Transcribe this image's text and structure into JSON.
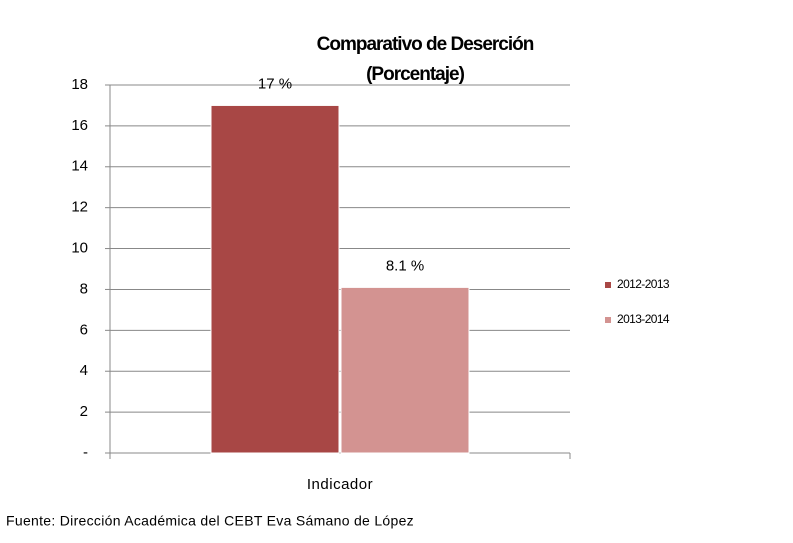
{
  "chart_data": {
    "type": "bar",
    "title": "Comparativo de Deserción",
    "subtitle": "(Porcentaje)",
    "categories": [
      "Indicador"
    ],
    "series": [
      {
        "name": "2012-2013",
        "color": "#a84745",
        "values": [
          17
        ],
        "value_labels": [
          "17 %"
        ]
      },
      {
        "name": "2013-2014",
        "color": "#d39391",
        "values": [
          8.1
        ],
        "value_labels": [
          "8.1 %"
        ]
      }
    ],
    "ylim": [
      0,
      18
    ],
    "yticks": [
      {
        "value": 0,
        "label": "-"
      },
      2,
      4,
      6,
      8,
      10,
      12,
      14,
      16,
      18
    ],
    "grid": true,
    "legend": "right",
    "source": "Fuente: Dirección Académica del CEBT Eva Sámano de López"
  }
}
